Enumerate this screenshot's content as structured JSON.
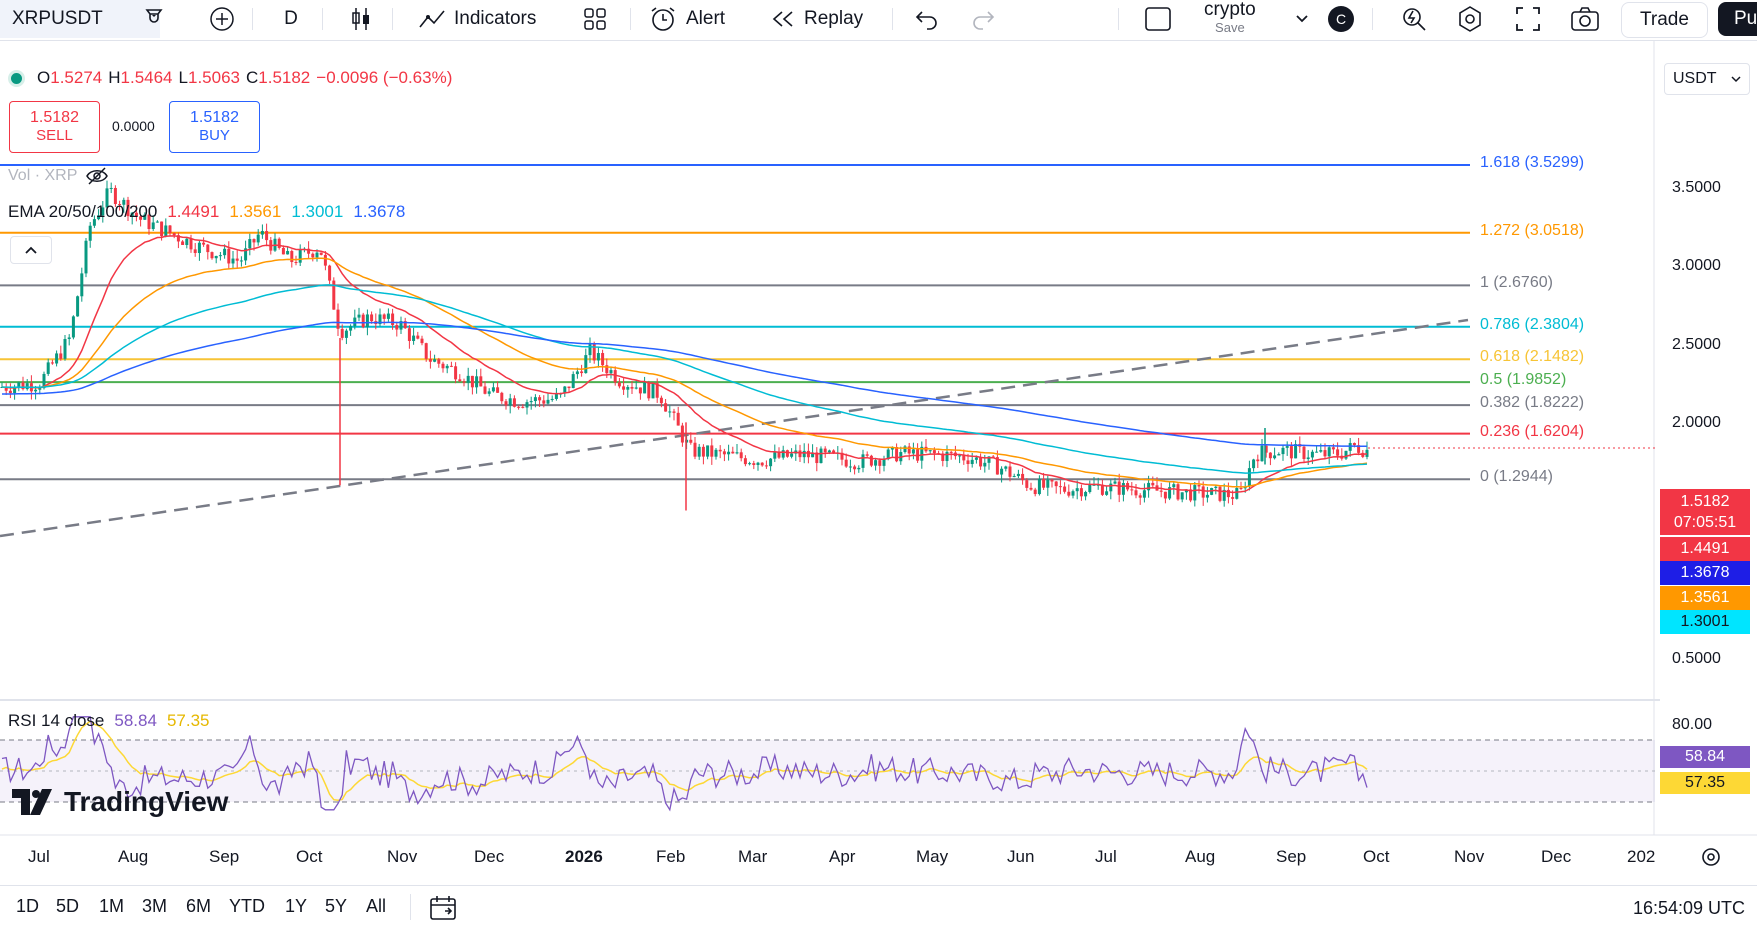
{
  "toolbar": {
    "symbol": "XRPUSDT",
    "interval": "D",
    "indicators_label": "Indicators",
    "alert_label": "Alert",
    "replay_label": "Replay",
    "layout_name": "crypto",
    "layout_sub": "Save",
    "avatar_letter": "C",
    "trade_label": "Trade",
    "publish_label": "Pu"
  },
  "legend": {
    "o_label": "O",
    "o": "1.5274",
    "h_label": "H",
    "h": "1.5464",
    "l_label": "L",
    "l": "1.5063",
    "c_label": "C",
    "c": "1.5182",
    "change": "−0.0096 (−0.63%)",
    "sell_price": "1.5182",
    "sell_label": "SELL",
    "spread": "0.0000",
    "buy_price": "1.5182",
    "buy_label": "BUY",
    "vol_label": "Vol · XRP",
    "ema_label": "EMA 20/50/100/200",
    "ema_values": [
      "1.4491",
      "1.3561",
      "1.3001",
      "1.3678"
    ],
    "rsi_label": "RSI 14 close",
    "rsi_values": [
      "58.84",
      "57.35"
    ]
  },
  "currency": "USDT",
  "colors": {
    "up": "#089981",
    "down": "#f23645",
    "ema20": "#f23645",
    "ema50": "#ff9800",
    "ema100": "#00bcd4",
    "ema200": "#2962ff",
    "rsi": "#7e57c2",
    "rsi_ma": "#fdd835"
  },
  "price_axis": [
    "3.5000",
    "3.0000",
    "2.5000",
    "2.0000",
    "0.5000"
  ],
  "rsi_axis": [
    "80.00"
  ],
  "price_tags": {
    "last": "1.5182",
    "countdown": "07:05:51",
    "ema20": "1.4491",
    "ema200": "1.3678",
    "ema50": "1.3561",
    "ema100": "1.3001",
    "rsi": "58.84",
    "rsi_ma": "57.35"
  },
  "fib_levels": [
    {
      "label": "1.618 (3.5299)",
      "price": 3.5299,
      "color": "#2962ff"
    },
    {
      "label": "1.272 (3.0518)",
      "price": 3.0518,
      "color": "#ff9800"
    },
    {
      "label": "1 (2.6760)",
      "price": 2.676,
      "color": "#787b86"
    },
    {
      "label": "0.786 (2.3804)",
      "price": 2.3804,
      "color": "#00bcd4"
    },
    {
      "label": "0.618 (2.1482)",
      "price": 2.1482,
      "color": "#f7c436"
    },
    {
      "label": "0.5 (1.9852)",
      "price": 1.9852,
      "color": "#4caf50"
    },
    {
      "label": "0.382 (1.8222)",
      "price": 1.8222,
      "color": "#787b86"
    },
    {
      "label": "0.236 (1.6204)",
      "price": 1.6204,
      "color": "#f23645"
    },
    {
      "label": "0 (1.2944)",
      "price": 1.2944,
      "color": "#787b86"
    }
  ],
  "months": [
    "Jul",
    "Aug",
    "Sep",
    "Oct",
    "Nov",
    "Dec",
    "2026",
    "Feb",
    "Mar",
    "Apr",
    "May",
    "Jun",
    "Jul",
    "Aug",
    "Sep",
    "Oct",
    "Nov",
    "Dec",
    "202"
  ],
  "ranges": [
    "1D",
    "5D",
    "1M",
    "3M",
    "6M",
    "YTD",
    "1Y",
    "5Y",
    "All"
  ],
  "clock": "16:54:09 UTC",
  "brand": "TradingView",
  "chart_data": {
    "type": "candlestick",
    "symbol": "XRPUSDT",
    "timeframe": "D",
    "last": 1.5182,
    "ema": {
      "20": 1.4491,
      "50": 1.3561,
      "100": 1.3001,
      "200": 1.3678
    },
    "rsi": 58.84,
    "rsi_ma": 57.35
  }
}
